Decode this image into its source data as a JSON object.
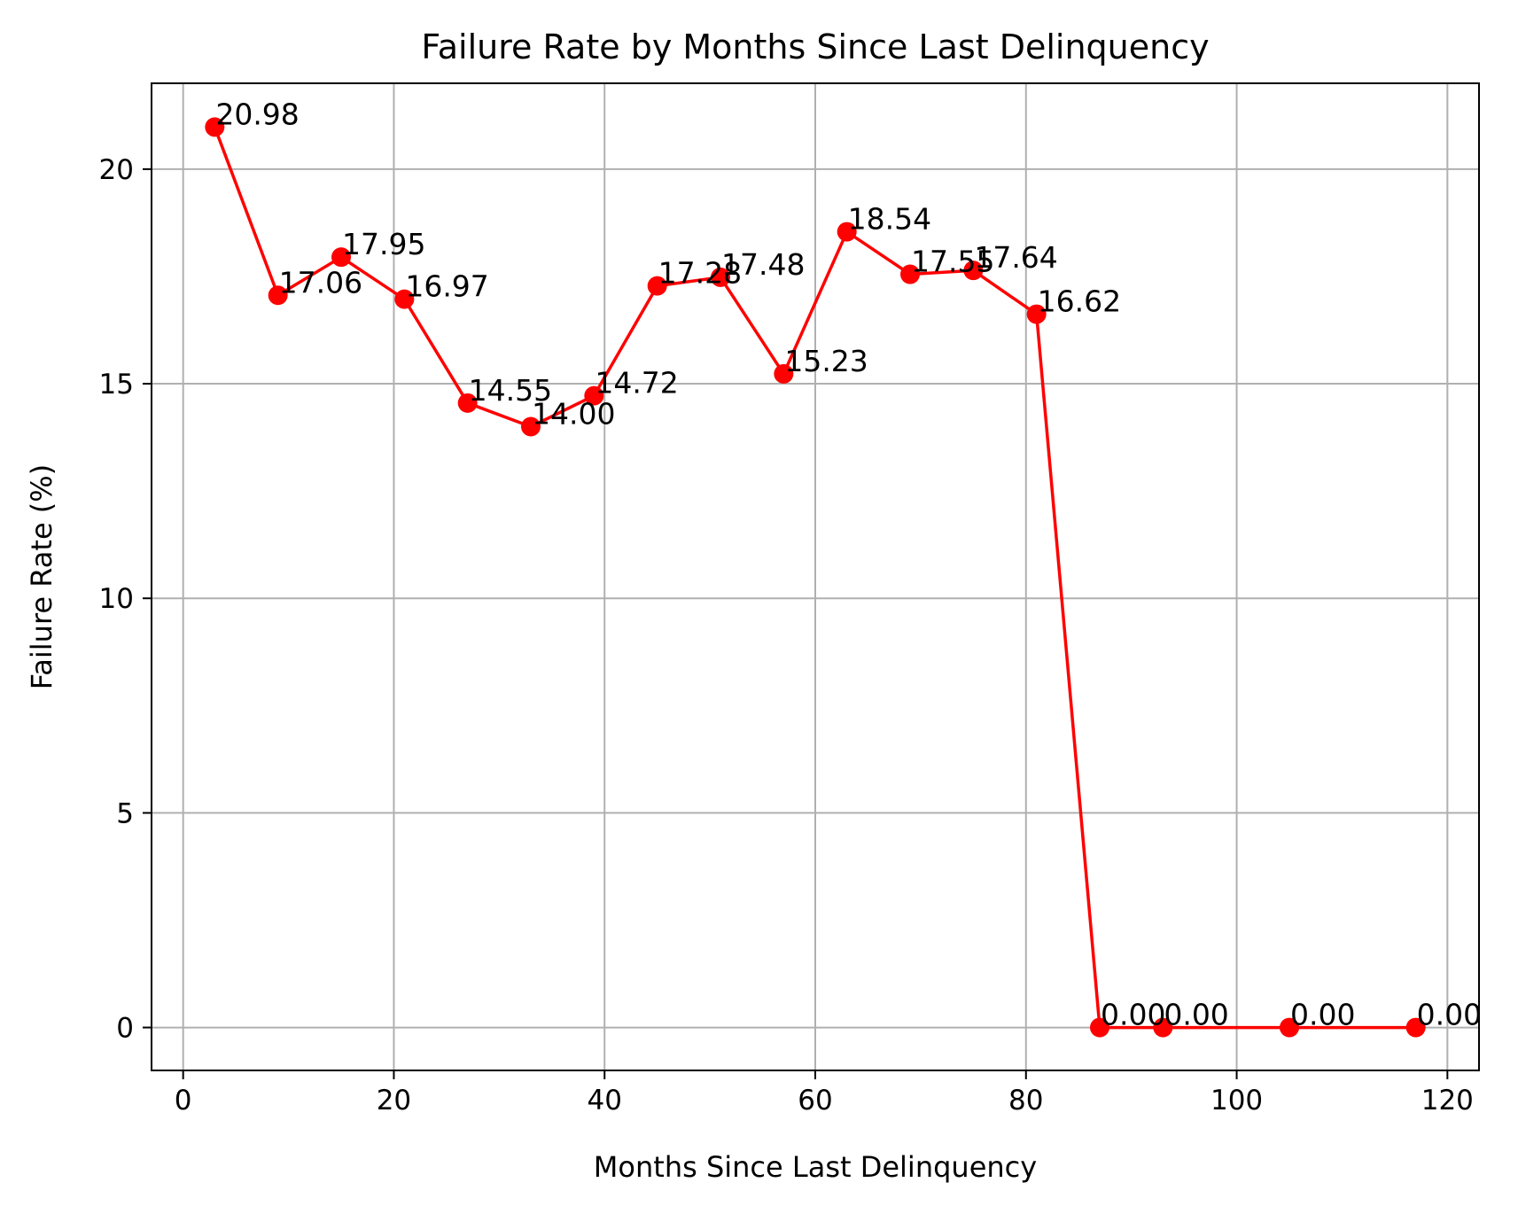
{
  "chart_data": {
    "type": "line",
    "title": "Failure Rate by Months Since Last Delinquency",
    "xlabel": "Months Since Last Delinquency",
    "ylabel": "Failure Rate (%)",
    "xlim": [
      -3,
      123
    ],
    "ylim": [
      -1,
      22
    ],
    "xticks": [
      0,
      20,
      40,
      60,
      80,
      100,
      120
    ],
    "yticks": [
      0,
      5,
      10,
      15,
      20
    ],
    "grid": true,
    "x": [
      3,
      9,
      15,
      21,
      27,
      33,
      39,
      45,
      51,
      57,
      63,
      69,
      75,
      81,
      87,
      93,
      105,
      117
    ],
    "y": [
      20.98,
      17.06,
      17.95,
      16.97,
      14.55,
      14.0,
      14.72,
      17.28,
      17.48,
      15.23,
      18.54,
      17.55,
      17.64,
      16.62,
      0.0,
      0.0,
      0.0,
      0.0
    ],
    "data_labels": [
      "20.98",
      "17.06",
      "17.95",
      "16.97",
      "14.55",
      "14.00",
      "14.72",
      "17.28",
      "17.48",
      "15.23",
      "18.54",
      "17.55",
      "17.64",
      "16.62",
      "0.00",
      "0.00",
      "0.00",
      "0.00"
    ],
    "colors": {
      "line": "#ff0000",
      "marker": "#ff0000",
      "grid": "#b0b0b0",
      "axes": "#000000"
    }
  }
}
